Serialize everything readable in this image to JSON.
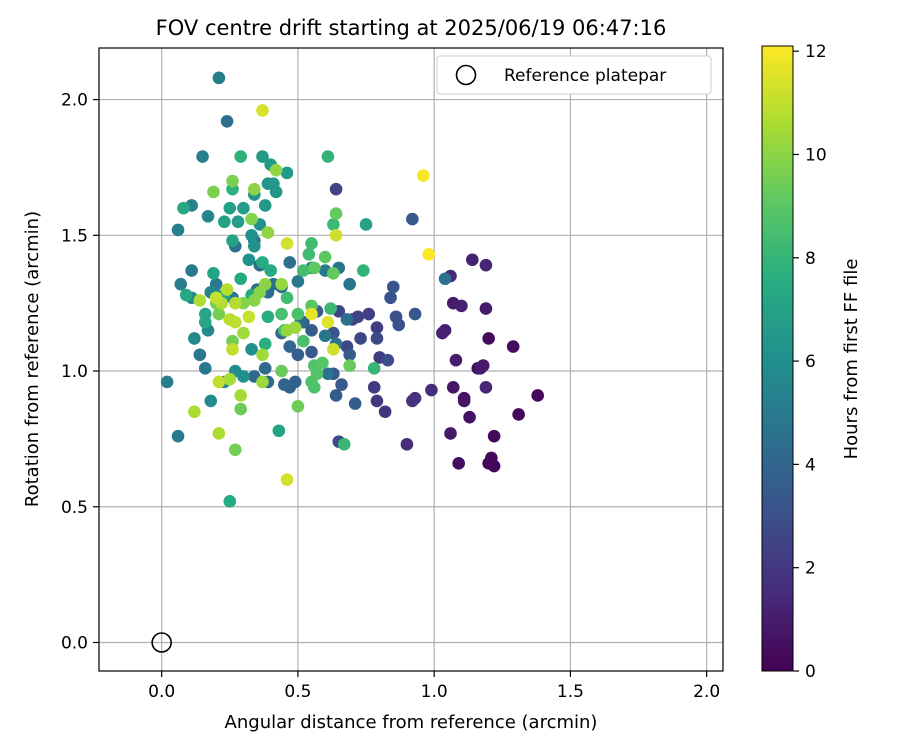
{
  "chart_data": {
    "type": "scatter",
    "title": "FOV centre drift starting at 2025/06/19 06:47:16",
    "xlabel": "Angular distance from reference (arcmin)",
    "ylabel": "Rotation from reference (arcmin)",
    "xlim": [
      -0.23,
      2.06
    ],
    "ylim": [
      -0.105,
      2.19
    ],
    "xticks": [
      0.0,
      0.5,
      1.0,
      1.5,
      2.0
    ],
    "xtick_labels": [
      "0.0",
      "0.5",
      "1.0",
      "1.5",
      "2.0"
    ],
    "yticks": [
      0.0,
      0.5,
      1.0,
      1.5,
      2.0
    ],
    "ytick_labels": [
      "0.0",
      "0.5",
      "1.0",
      "1.5",
      "2.0"
    ],
    "grid": true,
    "legend": {
      "placement": "top-right",
      "entries": [
        "Reference platepar"
      ]
    },
    "reference_point": {
      "x": 0.0,
      "y": 0.0,
      "label": "Reference platepar"
    },
    "colorbar": {
      "label": "Hours from first FF file",
      "range": [
        0,
        12.1
      ],
      "ticks": [
        0,
        2,
        4,
        6,
        8,
        10,
        12
      ],
      "tick_labels": [
        "0",
        "2",
        "4",
        "6",
        "8",
        "10",
        "12"
      ],
      "colormap": "viridis"
    },
    "columns": [
      "x",
      "y",
      "hours"
    ],
    "points": [
      [
        1.2,
        0.66,
        0.1
      ],
      [
        1.22,
        0.65,
        0.1
      ],
      [
        1.21,
        0.68,
        0.2
      ],
      [
        1.38,
        0.91,
        0.3
      ],
      [
        1.31,
        0.84,
        0.3
      ],
      [
        1.22,
        0.76,
        0.3
      ],
      [
        1.29,
        1.09,
        0.4
      ],
      [
        1.2,
        1.12,
        0.4
      ],
      [
        1.16,
        1.01,
        0.5
      ],
      [
        1.09,
        0.66,
        0.5
      ],
      [
        1.13,
        0.83,
        0.6
      ],
      [
        1.11,
        0.9,
        0.6
      ],
      [
        1.11,
        0.89,
        0.7
      ],
      [
        1.07,
        0.94,
        0.7
      ],
      [
        1.06,
        0.77,
        0.8
      ],
      [
        1.18,
        1.02,
        0.8
      ],
      [
        1.17,
        1.01,
        0.9
      ],
      [
        1.19,
        1.23,
        0.9
      ],
      [
        1.08,
        1.04,
        1.0
      ],
      [
        1.07,
        1.25,
        1.0
      ],
      [
        1.1,
        1.24,
        1.1
      ],
      [
        1.04,
        1.15,
        1.1
      ],
      [
        1.03,
        1.14,
        1.2
      ],
      [
        1.14,
        1.41,
        1.2
      ],
      [
        1.19,
        1.39,
        1.3
      ],
      [
        1.19,
        0.94,
        1.3
      ],
      [
        1.06,
        1.35,
        1.4
      ],
      [
        0.99,
        0.93,
        1.5
      ],
      [
        0.9,
        0.73,
        1.6
      ],
      [
        0.93,
        0.9,
        1.7
      ],
      [
        0.92,
        0.89,
        1.8
      ],
      [
        0.82,
        0.85,
        1.9
      ],
      [
        0.79,
        0.89,
        2.0
      ],
      [
        0.78,
        0.94,
        2.1
      ],
      [
        0.8,
        1.05,
        2.1
      ],
      [
        0.79,
        1.16,
        2.2
      ],
      [
        0.76,
        1.21,
        2.3
      ],
      [
        0.72,
        1.2,
        2.4
      ],
      [
        0.7,
        1.19,
        2.5
      ],
      [
        0.68,
        1.09,
        2.6
      ],
      [
        0.73,
        1.12,
        2.6
      ],
      [
        0.65,
        1.22,
        2.6
      ],
      [
        0.64,
        1.67,
        2.5
      ],
      [
        0.65,
        0.74,
        2.8
      ],
      [
        0.79,
        1.12,
        2.7
      ],
      [
        0.83,
        1.04,
        2.9
      ],
      [
        0.86,
        1.2,
        3.0
      ],
      [
        0.87,
        1.17,
        3.1
      ],
      [
        0.84,
        1.27,
        3.1
      ],
      [
        0.85,
        1.31,
        3.2
      ],
      [
        0.92,
        1.56,
        3.4
      ],
      [
        0.93,
        1.21,
        3.3
      ],
      [
        0.63,
        1.14,
        3.2
      ],
      [
        0.63,
        0.99,
        3.3
      ],
      [
        0.66,
        0.95,
        3.4
      ],
      [
        0.69,
        1.06,
        3.5
      ],
      [
        0.71,
        0.88,
        3.6
      ],
      [
        0.64,
        0.91,
        3.6
      ],
      [
        0.55,
        1.07,
        3.5
      ],
      [
        0.52,
        1.18,
        3.4
      ],
      [
        0.57,
        1.22,
        3.5
      ],
      [
        0.55,
        1.15,
        3.6
      ],
      [
        0.5,
        1.06,
        3.7
      ],
      [
        0.49,
        0.96,
        3.8
      ],
      [
        0.47,
        0.94,
        3.8
      ],
      [
        0.45,
        0.95,
        3.9
      ],
      [
        0.47,
        1.09,
        3.9
      ],
      [
        0.44,
        1.14,
        4.0
      ],
      [
        0.39,
        0.96,
        4.1
      ],
      [
        0.34,
        0.98,
        4.2
      ],
      [
        0.38,
        1.01,
        4.2
      ],
      [
        0.36,
        1.39,
        4.2
      ],
      [
        0.35,
        1.3,
        4.3
      ],
      [
        0.39,
        1.29,
        4.3
      ],
      [
        0.41,
        1.32,
        4.4
      ],
      [
        0.44,
        1.31,
        4.5
      ],
      [
        0.47,
        1.4,
        4.5
      ],
      [
        0.51,
        1.18,
        4.4
      ],
      [
        0.61,
        0.99,
        4.6
      ],
      [
        0.64,
        1.1,
        4.6
      ],
      [
        0.68,
        1.19,
        4.5
      ],
      [
        0.6,
        1.13,
        4.8
      ],
      [
        0.69,
        1.32,
        4.7
      ],
      [
        0.65,
        1.38,
        4.7
      ],
      [
        0.6,
        1.37,
        4.9
      ],
      [
        0.55,
        1.38,
        4.8
      ],
      [
        0.5,
        1.33,
        4.9
      ],
      [
        1.04,
        1.34,
        4.6
      ],
      [
        0.24,
        1.92,
        4.5
      ],
      [
        0.27,
        1.46,
        4.6
      ],
      [
        0.34,
        1.48,
        4.6
      ],
      [
        0.26,
        1.27,
        4.8
      ],
      [
        0.2,
        1.32,
        4.9
      ],
      [
        0.16,
        1.01,
        4.9
      ],
      [
        0.14,
        1.06,
        4.8
      ],
      [
        0.06,
        0.76,
        5.0
      ],
      [
        0.11,
        1.37,
        5.0
      ],
      [
        0.07,
        1.32,
        5.1
      ],
      [
        0.02,
        0.96,
        5.1
      ],
      [
        0.21,
        2.08,
        5.2
      ],
      [
        0.15,
        1.79,
        5.3
      ],
      [
        0.06,
        1.52,
        5.3
      ],
      [
        0.11,
        1.61,
        5.4
      ],
      [
        0.17,
        1.57,
        5.5
      ],
      [
        0.18,
        1.29,
        5.5
      ],
      [
        0.2,
        1.28,
        5.6
      ],
      [
        0.11,
        1.27,
        5.6
      ],
      [
        0.12,
        1.12,
        5.7
      ],
      [
        0.17,
        1.15,
        5.7
      ],
      [
        0.18,
        0.89,
        5.8
      ],
      [
        0.23,
        0.96,
        5.9
      ],
      [
        0.27,
        1.0,
        5.9
      ],
      [
        0.3,
        0.98,
        6.0
      ],
      [
        0.33,
        1.08,
        6.0
      ],
      [
        0.33,
        1.5,
        6.1
      ],
      [
        0.32,
        1.41,
        6.1
      ],
      [
        0.34,
        1.46,
        6.2
      ],
      [
        0.36,
        1.54,
        6.2
      ],
      [
        0.34,
        1.65,
        6.3
      ],
      [
        0.39,
        1.69,
        6.3
      ],
      [
        0.41,
        1.69,
        6.4
      ],
      [
        0.42,
        1.66,
        6.4
      ],
      [
        0.38,
        1.61,
        6.5
      ],
      [
        0.46,
        1.73,
        6.5
      ],
      [
        0.4,
        1.76,
        6.6
      ],
      [
        0.37,
        1.79,
        6.6
      ],
      [
        0.28,
        1.55,
        6.7
      ],
      [
        0.3,
        1.6,
        6.8
      ],
      [
        0.25,
        1.6,
        6.9
      ],
      [
        0.23,
        1.55,
        7.0
      ],
      [
        0.26,
        1.48,
        7.0
      ],
      [
        0.23,
        1.28,
        7.1
      ],
      [
        0.19,
        1.36,
        7.1
      ],
      [
        0.16,
        1.21,
        7.2
      ],
      [
        0.16,
        1.18,
        7.2
      ],
      [
        0.09,
        1.28,
        7.3
      ],
      [
        0.08,
        1.6,
        7.3
      ],
      [
        0.29,
        1.34,
        7.4
      ],
      [
        0.33,
        1.28,
        7.4
      ],
      [
        0.37,
        1.4,
        7.5
      ],
      [
        0.4,
        1.37,
        7.5
      ],
      [
        0.38,
        1.1,
        7.6
      ],
      [
        0.39,
        1.2,
        7.6
      ],
      [
        0.43,
        0.78,
        7.1
      ],
      [
        0.25,
        0.52,
        7.4
      ],
      [
        0.29,
        1.79,
        7.8
      ],
      [
        0.26,
        1.67,
        7.8
      ],
      [
        0.61,
        1.79,
        7.9
      ],
      [
        0.75,
        1.54,
        7.0
      ],
      [
        0.74,
        1.37,
        7.9
      ],
      [
        0.78,
        1.01,
        8.0
      ],
      [
        0.67,
        0.73,
        8.1
      ],
      [
        0.63,
        1.54,
        8.2
      ],
      [
        0.62,
        1.23,
        8.2
      ],
      [
        0.55,
        1.47,
        8.3
      ],
      [
        0.54,
        1.43,
        8.3
      ],
      [
        0.52,
        1.37,
        8.4
      ],
      [
        0.46,
        1.27,
        8.4
      ],
      [
        0.44,
        1.21,
        8.5
      ],
      [
        0.45,
        1.15,
        8.5
      ],
      [
        0.5,
        1.21,
        8.6
      ],
      [
        0.52,
        1.11,
        8.6
      ],
      [
        0.55,
        0.96,
        8.7
      ],
      [
        0.56,
        0.94,
        8.7
      ],
      [
        0.57,
        0.99,
        8.8
      ],
      [
        0.56,
        1.02,
        8.8
      ],
      [
        0.59,
        1.03,
        8.9
      ],
      [
        0.55,
        1.24,
        9.0
      ],
      [
        0.56,
        1.38,
        9.1
      ],
      [
        0.6,
        1.42,
        9.1
      ],
      [
        0.63,
        1.36,
        9.2
      ],
      [
        0.64,
        1.58,
        9.2
      ],
      [
        0.69,
        1.02,
        9.3
      ],
      [
        0.44,
        1.0,
        9.3
      ],
      [
        0.5,
        0.87,
        9.4
      ],
      [
        0.29,
        0.86,
        9.4
      ],
      [
        0.27,
        0.71,
        9.5
      ],
      [
        0.26,
        1.11,
        9.5
      ],
      [
        0.21,
        1.21,
        9.6
      ],
      [
        0.2,
        1.25,
        9.6
      ],
      [
        0.19,
        1.66,
        9.7
      ],
      [
        0.26,
        1.7,
        9.7
      ],
      [
        0.33,
        1.56,
        9.8
      ],
      [
        0.3,
        1.25,
        9.8
      ],
      [
        0.34,
        1.26,
        9.9
      ],
      [
        0.36,
        1.29,
        9.9
      ],
      [
        0.34,
        1.67,
        10.0
      ],
      [
        0.38,
        1.32,
        10.0
      ],
      [
        0.39,
        1.51,
        10.1
      ],
      [
        0.42,
        1.74,
        10.1
      ],
      [
        0.44,
        1.32,
        10.2
      ],
      [
        0.46,
        1.15,
        10.2
      ],
      [
        0.49,
        1.16,
        10.3
      ],
      [
        0.37,
        0.96,
        10.3
      ],
      [
        0.37,
        1.06,
        10.4
      ],
      [
        0.3,
        1.14,
        10.4
      ],
      [
        0.29,
        0.91,
        10.5
      ],
      [
        0.25,
        0.97,
        10.5
      ],
      [
        0.21,
        0.77,
        10.6
      ],
      [
        0.12,
        0.85,
        10.6
      ],
      [
        0.14,
        1.26,
        10.7
      ],
      [
        0.22,
        1.25,
        10.7
      ],
      [
        0.24,
        1.3,
        10.8
      ],
      [
        0.27,
        1.25,
        10.8
      ],
      [
        0.25,
        1.19,
        10.9
      ],
      [
        0.27,
        1.18,
        10.9
      ],
      [
        0.26,
        1.08,
        11.0
      ],
      [
        0.21,
        0.96,
        11.0
      ],
      [
        0.2,
        1.27,
        11.1
      ],
      [
        0.32,
        1.2,
        11.1
      ],
      [
        0.63,
        1.08,
        11.2
      ],
      [
        0.64,
        1.5,
        11.2
      ],
      [
        0.46,
        1.47,
        11.3
      ],
      [
        0.46,
        0.6,
        11.3
      ],
      [
        0.37,
        1.96,
        11.4
      ],
      [
        0.61,
        1.18,
        11.5
      ],
      [
        0.55,
        1.21,
        11.7
      ],
      [
        0.96,
        1.72,
        12.0
      ],
      [
        0.98,
        1.43,
        12.1
      ]
    ]
  }
}
